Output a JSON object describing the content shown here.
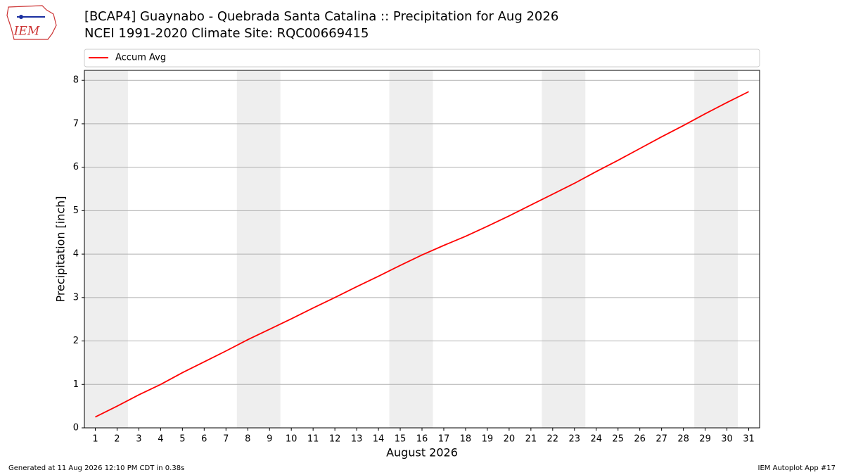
{
  "chart_data": {
    "type": "line",
    "title": "[BCAP4] Guaynabo - Quebrada Santa Catalina :: Precipitation for Aug 2026",
    "subtitle": "NCEI 1991-2020 Climate Site: RQC00669415",
    "logo_text": "IEM",
    "x_label": "August 2026",
    "y_label": "Precipitation [inch]",
    "x": [
      1,
      2,
      3,
      4,
      5,
      6,
      7,
      8,
      9,
      10,
      11,
      12,
      13,
      14,
      15,
      16,
      17,
      18,
      19,
      20,
      21,
      22,
      23,
      24,
      25,
      26,
      27,
      28,
      29,
      30,
      31
    ],
    "series": [
      {
        "name": "Accum Avg",
        "color": "#ff0000",
        "values": [
          0.25,
          0.5,
          0.76,
          1.0,
          1.27,
          1.52,
          1.77,
          2.03,
          2.27,
          2.51,
          2.76,
          3.0,
          3.25,
          3.49,
          3.74,
          3.98,
          4.2,
          4.41,
          4.64,
          4.88,
          5.13,
          5.38,
          5.63,
          5.9,
          6.16,
          6.43,
          6.7,
          6.96,
          7.23,
          7.49,
          7.74
        ]
      }
    ],
    "xlim": [
      0.5,
      31.5
    ],
    "xticks": [
      1,
      2,
      3,
      4,
      5,
      6,
      7,
      8,
      9,
      10,
      11,
      12,
      13,
      14,
      15,
      16,
      17,
      18,
      19,
      20,
      21,
      22,
      23,
      24,
      25,
      26,
      27,
      28,
      29,
      30,
      31
    ],
    "ylim": [
      0,
      8.23
    ],
    "yticks": [
      0,
      1,
      2,
      3,
      4,
      5,
      6,
      7,
      8
    ],
    "grid": true,
    "shaded_spans": [
      [
        0.5,
        2.5
      ],
      [
        7.5,
        9.5
      ],
      [
        14.5,
        16.5
      ],
      [
        21.5,
        23.5
      ],
      [
        28.5,
        30.5
      ]
    ],
    "shade_color": "#eeeeee",
    "footer_left": "Generated at 11 Aug 2026 12:10 PM CDT in 0.38s",
    "footer_right": "IEM Autoplot App #17"
  }
}
